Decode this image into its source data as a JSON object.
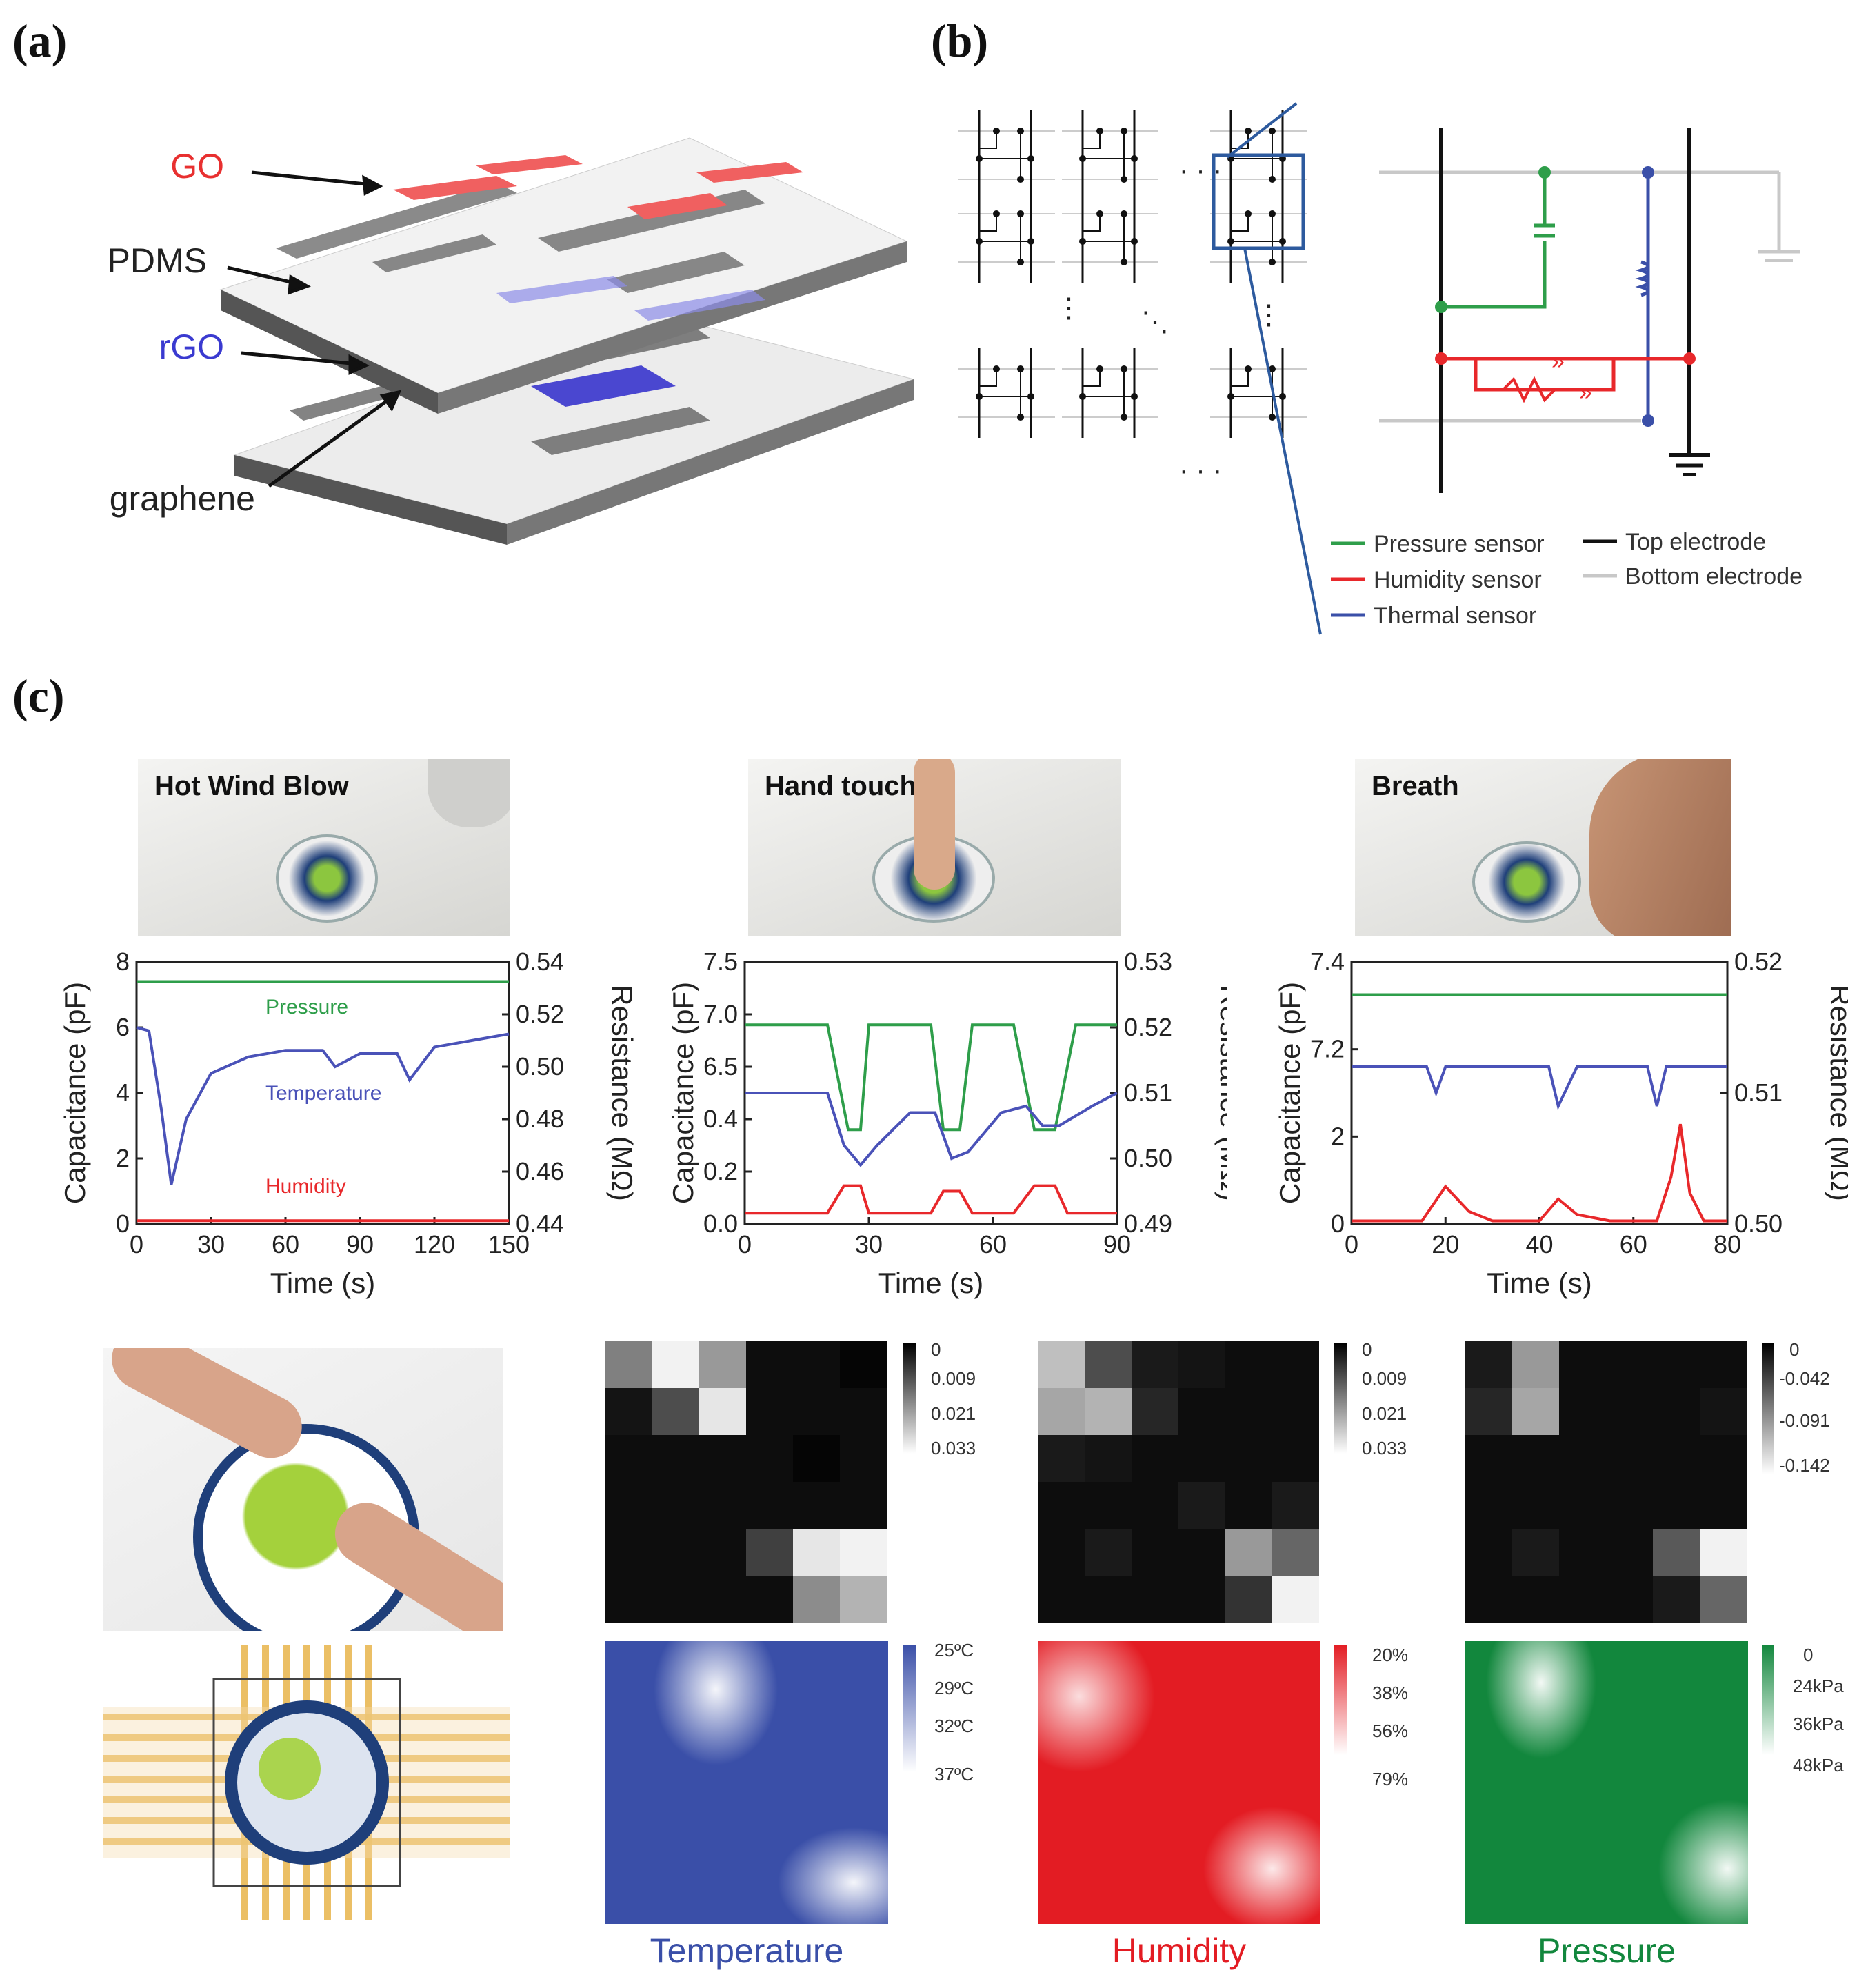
{
  "panels": {
    "a": "(a)",
    "b": "(b)",
    "c": "(c)"
  },
  "layers": {
    "go": "GO",
    "pdms": "PDMS",
    "rgo": "rGO",
    "graphene": "graphene"
  },
  "circuit_legend": {
    "pressure": "Pressure sensor",
    "humidity": "Humidity sensor",
    "thermal": "Thermal sensor",
    "top": "Top electrode",
    "bottom": "Bottom electrode"
  },
  "photos": {
    "hot": "Hot Wind Blow",
    "touch": "Hand touch",
    "breath": "Breath"
  },
  "colors": {
    "pressure": "#2e9e4a",
    "temperature": "#4a52b8",
    "humidity": "#e8282b",
    "top": "#111111",
    "bottom": "#c8c8c8"
  },
  "chart_data": [
    {
      "type": "line",
      "xlabel": "Time (s)",
      "ylabel": "Capacitance (pF)",
      "y2label": "Resistance (MΩ)",
      "xlim": [
        0,
        150
      ],
      "xticks": [
        "0",
        "30",
        "60",
        "90",
        "120",
        "150"
      ],
      "ylim": [
        0,
        8
      ],
      "yticks": [
        "0",
        "2",
        "4",
        "6",
        "8"
      ],
      "y2lim": [
        0.44,
        0.54
      ],
      "y2ticks": [
        "0.44",
        "0.46",
        "0.48",
        "0.50",
        "0.52",
        "0.54"
      ],
      "series": [
        {
          "name": "Pressure",
          "x": [
            0,
            150
          ],
          "y": [
            7.4,
            7.4
          ]
        },
        {
          "name": "Temperature",
          "x": [
            0,
            5,
            10,
            14,
            20,
            30,
            45,
            60,
            75,
            80,
            90,
            105,
            110,
            120,
            135,
            150
          ],
          "y": [
            6.0,
            5.9,
            3.5,
            1.2,
            3.2,
            4.6,
            5.1,
            5.3,
            5.3,
            4.8,
            5.2,
            5.2,
            4.4,
            5.4,
            5.6,
            5.8
          ]
        },
        {
          "name": "Humidity",
          "x": [
            0,
            150
          ],
          "y": [
            0.1,
            0.1
          ]
        }
      ]
    },
    {
      "type": "line",
      "xlabel": "Time (s)",
      "ylabel": "Capacitance (pF)",
      "y2label": "Resistance (MΩ)",
      "xlim": [
        0,
        90
      ],
      "xticks": [
        "0",
        "30",
        "60",
        "90"
      ],
      "yticks": [
        "0.0",
        "0.2",
        "0.4",
        "6.5",
        "7.0",
        "7.5"
      ],
      "y2lim": [
        0.49,
        0.53
      ],
      "y2ticks": [
        "0.49",
        "0.50",
        "0.51",
        "0.52",
        "0.53"
      ],
      "series": [
        {
          "name": "",
          "x": [
            0,
            20,
            25,
            28,
            30,
            35,
            45,
            48,
            52,
            55,
            65,
            70,
            75,
            80,
            90
          ],
          "y": [
            7.4,
            7.4,
            6.4,
            6.4,
            7.4,
            7.4,
            7.4,
            6.4,
            6.4,
            7.4,
            7.4,
            6.4,
            6.4,
            7.4,
            7.4
          ]
        },
        {
          "name": "",
          "x": [
            0,
            20,
            24,
            28,
            32,
            40,
            46,
            50,
            54,
            62,
            68,
            72,
            76,
            84,
            90
          ],
          "y": [
            0.51,
            0.51,
            0.502,
            0.499,
            0.502,
            0.507,
            0.507,
            0.5,
            0.501,
            0.507,
            0.508,
            0.505,
            0.505,
            0.508,
            0.51
          ]
        },
        {
          "name": "",
          "x": [
            0,
            20,
            24,
            28,
            30,
            35,
            45,
            48,
            52,
            55,
            65,
            70,
            75,
            78,
            90
          ],
          "y": [
            0.1,
            0.1,
            0.35,
            0.35,
            0.1,
            0.1,
            0.1,
            0.3,
            0.3,
            0.1,
            0.1,
            0.35,
            0.35,
            0.1,
            0.1
          ]
        }
      ]
    },
    {
      "type": "line",
      "xlabel": "Time (s)",
      "ylabel": "Capacitance (pF)",
      "y2label": "Resistance (MΩ)",
      "xlim": [
        0,
        80
      ],
      "xticks": [
        "0",
        "20",
        "40",
        "60",
        "80"
      ],
      "yticks": [
        "0",
        "2",
        "7.2",
        "7.4"
      ],
      "y2ticks": [
        "0.50",
        "0.51",
        "0.52"
      ],
      "series": [
        {
          "name": "",
          "x": [
            0,
            80
          ],
          "y": [
            7.35,
            7.35
          ]
        },
        {
          "name": "",
          "x": [
            0,
            16,
            18,
            20,
            40,
            42,
            44,
            48,
            63,
            65,
            67,
            80
          ],
          "y": [
            0.512,
            0.512,
            0.51,
            0.512,
            0.512,
            0.512,
            0.509,
            0.512,
            0.512,
            0.509,
            0.512,
            0.512
          ]
        },
        {
          "name": "",
          "x": [
            0,
            15,
            20,
            25,
            30,
            40,
            44,
            48,
            55,
            65,
            68,
            70,
            72,
            75,
            80
          ],
          "y": [
            0.1,
            0.1,
            1.2,
            0.4,
            0.1,
            0.1,
            0.8,
            0.3,
            0.1,
            0.1,
            1.5,
            3.2,
            1.0,
            0.1,
            0.1
          ]
        }
      ]
    },
    {
      "type": "heatmap",
      "name": "temperature-gray",
      "colorbar": [
        "0",
        "0.009",
        "0.021",
        "0.033"
      ],
      "values": [
        [
          0.5,
          0.95,
          0.6,
          0.05,
          0.05,
          0.02
        ],
        [
          0.08,
          0.3,
          0.9,
          0.05,
          0.05,
          0.05
        ],
        [
          0.05,
          0.05,
          0.05,
          0.05,
          0.02,
          0.05
        ],
        [
          0.05,
          0.05,
          0.05,
          0.05,
          0.05,
          0.05
        ],
        [
          0.05,
          0.05,
          0.05,
          0.25,
          0.9,
          0.95
        ],
        [
          0.05,
          0.05,
          0.05,
          0.05,
          0.55,
          0.7
        ]
      ]
    },
    {
      "type": "heatmap",
      "name": "humidity-gray",
      "colorbar": [
        "0",
        "0.009",
        "0.021",
        "0.033"
      ],
      "values": [
        [
          0.75,
          0.3,
          0.1,
          0.08,
          0.05,
          0.05
        ],
        [
          0.65,
          0.7,
          0.15,
          0.05,
          0.05,
          0.05
        ],
        [
          0.1,
          0.08,
          0.05,
          0.05,
          0.05,
          0.05
        ],
        [
          0.05,
          0.05,
          0.05,
          0.1,
          0.05,
          0.1
        ],
        [
          0.05,
          0.1,
          0.05,
          0.05,
          0.6,
          0.4
        ],
        [
          0.05,
          0.05,
          0.05,
          0.05,
          0.2,
          0.95
        ]
      ]
    },
    {
      "type": "heatmap",
      "name": "pressure-gray",
      "colorbar": [
        "0",
        "-0.042",
        "-0.091",
        "-0.142"
      ],
      "values": [
        [
          0.1,
          0.6,
          0.05,
          0.05,
          0.05,
          0.05
        ],
        [
          0.15,
          0.65,
          0.05,
          0.05,
          0.05,
          0.08
        ],
        [
          0.05,
          0.05,
          0.05,
          0.05,
          0.05,
          0.05
        ],
        [
          0.05,
          0.05,
          0.05,
          0.05,
          0.05,
          0.05
        ],
        [
          0.05,
          0.1,
          0.05,
          0.05,
          0.35,
          0.95
        ],
        [
          0.05,
          0.05,
          0.05,
          0.05,
          0.1,
          0.4
        ]
      ]
    }
  ],
  "maps": [
    {
      "title": "Temperature",
      "color": "#3a4fa8",
      "colorbar": [
        "25ºC",
        "29ºC",
        "32ºC",
        "37ºC"
      ]
    },
    {
      "title": "Humidity",
      "color": "#e31c23",
      "colorbar": [
        "20%",
        "38%",
        "56%",
        "79%"
      ]
    },
    {
      "title": "Pressure",
      "color": "#12873d",
      "colorbar": [
        "0",
        "24kPa",
        "36kPa",
        "48kPa"
      ]
    }
  ]
}
